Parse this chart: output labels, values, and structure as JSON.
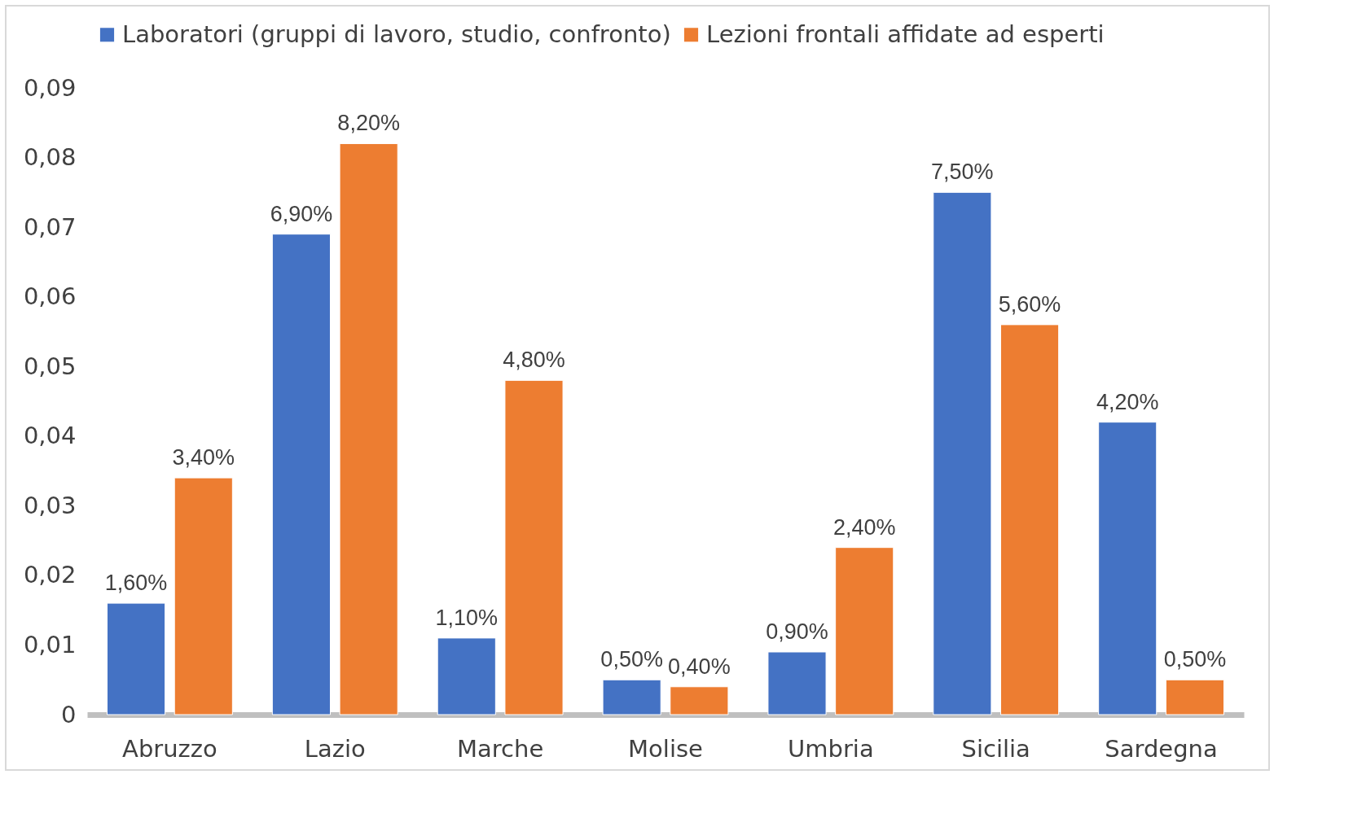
{
  "chart_data": {
    "type": "bar",
    "categories": [
      "Abruzzo",
      "Lazio",
      "Marche",
      "Molise",
      "Umbria",
      "Sicilia",
      "Sardegna"
    ],
    "series": [
      {
        "name": "Laboratori (gruppi di lavoro, studio, confronto)",
        "color": "#4472c4",
        "values": [
          0.016,
          0.069,
          0.011,
          0.005,
          0.009,
          0.075,
          0.042
        ],
        "value_labels": [
          "1,60%",
          "6,90%",
          "1,10%",
          "0,50%",
          "0,90%",
          "7,50%",
          "4,20%"
        ]
      },
      {
        "name": "Lezioni frontali affidate ad esperti",
        "color": "#ed7d31",
        "values": [
          0.034,
          0.082,
          0.048,
          0.004,
          0.024,
          0.056,
          0.005
        ],
        "value_labels": [
          "3,40%",
          "8,20%",
          "4,80%",
          "0,40%",
          "2,40%",
          "5,60%",
          "0,50%"
        ]
      }
    ],
    "ylim": [
      0,
      0.09
    ],
    "yticks": [
      0,
      {
        "value": 0.01,
        "label": "0,01"
      },
      {
        "value": 0.02,
        "label": "0,02"
      },
      {
        "value": 0.03,
        "label": "0,03"
      },
      {
        "value": 0.04,
        "label": "0,04"
      },
      {
        "value": 0.05,
        "label": "0,05"
      },
      {
        "value": 0.06,
        "label": "0,06"
      },
      {
        "value": 0.07,
        "label": "0,07"
      },
      {
        "value": 0.08,
        "label": "0,08"
      },
      {
        "value": 0.09,
        "label": "0,09"
      }
    ],
    "legend": "top",
    "grid": false
  }
}
